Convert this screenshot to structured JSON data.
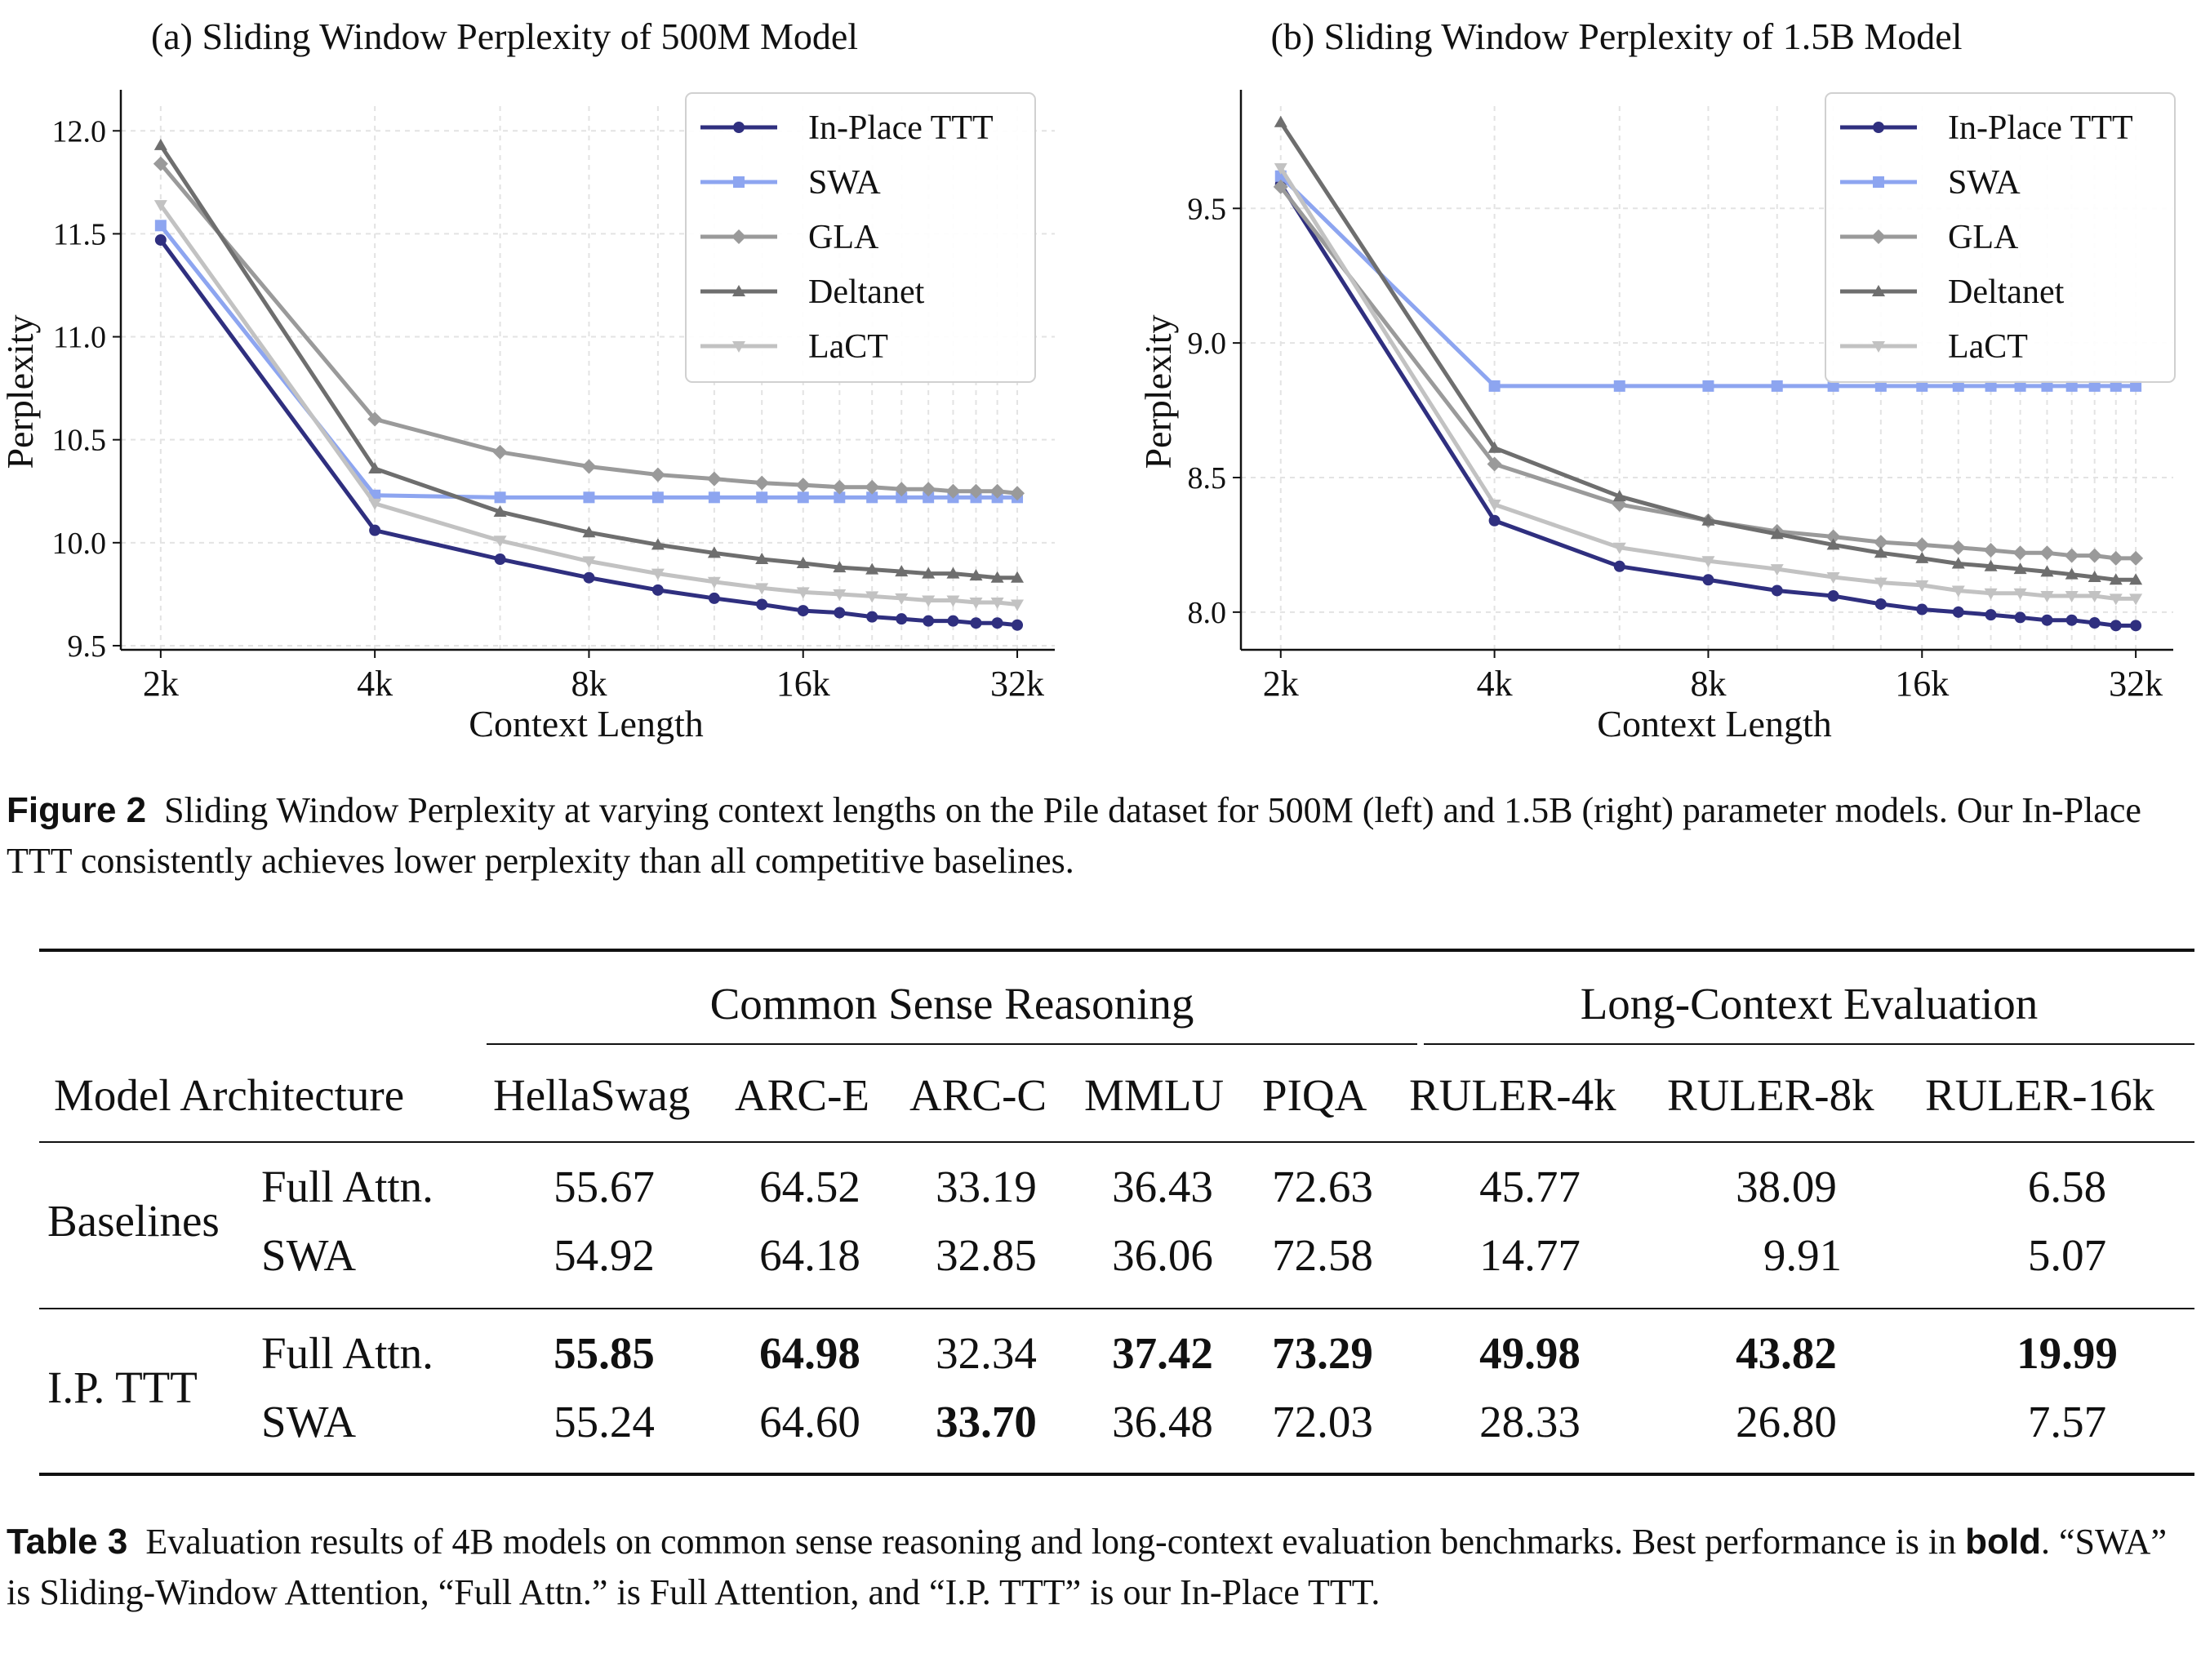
{
  "charts": [
    {
      "id": "a",
      "title": "(a) Sliding Window Perplexity of 500M Model",
      "xlabel": "Context Length",
      "ylabel": "Perplexity",
      "x_ticks": [
        "2k",
        "4k",
        "8k",
        "16k",
        "32k"
      ],
      "y_ticks": [
        "9.5",
        "10.0",
        "10.5",
        "11.0",
        "11.5",
        "12.0"
      ]
    },
    {
      "id": "b",
      "title": "(b) Sliding Window Perplexity of 1.5B Model",
      "xlabel": "Context Length",
      "ylabel": "Perplexity",
      "x_ticks": [
        "2k",
        "4k",
        "8k",
        "16k",
        "32k"
      ],
      "y_ticks": [
        "8.0",
        "8.5",
        "9.0",
        "9.5"
      ]
    }
  ],
  "legend": [
    "In-Place TTT",
    "SWA",
    "GLA",
    "Deltanet",
    "LaCT"
  ],
  "chart_data": [
    {
      "type": "line",
      "title": "(a) Sliding Window Perplexity of 500M Model",
      "xlabel": "Context Length",
      "ylabel": "Perplexity",
      "x": [
        2048,
        4096,
        6144,
        8192,
        10240,
        12288,
        14336,
        16384,
        18432,
        20480,
        22528,
        24576,
        26624,
        28672,
        30720,
        32768
      ],
      "xscale": "log2",
      "xlim": [
        1800,
        37000
      ],
      "ylim": [
        9.48,
        12.12
      ],
      "yticks": [
        9.5,
        10.0,
        10.5,
        11.0,
        11.5,
        12.0
      ],
      "xticks": [
        2048,
        4096,
        8192,
        16384,
        32768
      ],
      "legend_position": "top-right",
      "series": [
        {
          "name": "In-Place TTT",
          "color": "#2f2f7f",
          "marker": "circle",
          "values": [
            11.47,
            10.06,
            9.92,
            9.83,
            9.77,
            9.73,
            9.7,
            9.67,
            9.66,
            9.64,
            9.63,
            9.62,
            9.62,
            9.61,
            9.61,
            9.6
          ]
        },
        {
          "name": "SWA",
          "color": "#8da5f0",
          "marker": "square",
          "values": [
            11.54,
            10.23,
            10.22,
            10.22,
            10.22,
            10.22,
            10.22,
            10.22,
            10.22,
            10.22,
            10.22,
            10.22,
            10.22,
            10.22,
            10.22,
            10.22
          ]
        },
        {
          "name": "GLA",
          "color": "#9a9a9a",
          "marker": "diamond",
          "values": [
            11.84,
            10.6,
            10.44,
            10.37,
            10.33,
            10.31,
            10.29,
            10.28,
            10.27,
            10.27,
            10.26,
            10.26,
            10.25,
            10.25,
            10.25,
            10.24
          ]
        },
        {
          "name": "Deltanet",
          "color": "#6e6e6e",
          "marker": "triangle-up",
          "values": [
            11.93,
            10.36,
            10.15,
            10.05,
            9.99,
            9.95,
            9.92,
            9.9,
            9.88,
            9.87,
            9.86,
            9.85,
            9.85,
            9.84,
            9.83,
            9.83
          ]
        },
        {
          "name": "LaCT",
          "color": "#c2c2c2",
          "marker": "triangle-down",
          "values": [
            11.64,
            10.19,
            10.01,
            9.91,
            9.85,
            9.81,
            9.78,
            9.76,
            9.75,
            9.74,
            9.73,
            9.72,
            9.72,
            9.71,
            9.71,
            9.7
          ]
        }
      ]
    },
    {
      "type": "line",
      "title": "(b) Sliding Window Perplexity of 1.5B Model",
      "xlabel": "Context Length",
      "ylabel": "Perplexity",
      "x": [
        2048,
        4096,
        6144,
        8192,
        10240,
        12288,
        14336,
        16384,
        18432,
        20480,
        22528,
        24576,
        26624,
        28672,
        30720,
        32768
      ],
      "xscale": "log2",
      "xlim": [
        1800,
        37000
      ],
      "ylim": [
        7.86,
        9.88
      ],
      "yticks": [
        8.0,
        8.5,
        9.0,
        9.5
      ],
      "xticks": [
        2048,
        4096,
        8192,
        16384,
        32768
      ],
      "legend_position": "top-right",
      "series": [
        {
          "name": "In-Place TTT",
          "color": "#2f2f7f",
          "marker": "circle",
          "values": [
            9.59,
            8.34,
            8.17,
            8.12,
            8.08,
            8.06,
            8.03,
            8.01,
            8.0,
            7.99,
            7.98,
            7.97,
            7.97,
            7.96,
            7.95,
            7.95
          ]
        },
        {
          "name": "SWA",
          "color": "#8da5f0",
          "marker": "square",
          "values": [
            9.62,
            8.84,
            8.84,
            8.84,
            8.84,
            8.84,
            8.84,
            8.84,
            8.84,
            8.84,
            8.84,
            8.84,
            8.84,
            8.84,
            8.84,
            8.84
          ]
        },
        {
          "name": "GLA",
          "color": "#9a9a9a",
          "marker": "diamond",
          "values": [
            9.58,
            8.55,
            8.4,
            8.34,
            8.3,
            8.28,
            8.26,
            8.25,
            8.24,
            8.23,
            8.22,
            8.22,
            8.21,
            8.21,
            8.2,
            8.2
          ]
        },
        {
          "name": "Deltanet",
          "color": "#6e6e6e",
          "marker": "triangle-up",
          "values": [
            9.82,
            8.61,
            8.43,
            8.34,
            8.29,
            8.25,
            8.22,
            8.2,
            8.18,
            8.17,
            8.16,
            8.15,
            8.14,
            8.13,
            8.12,
            8.12
          ]
        },
        {
          "name": "LaCT",
          "color": "#c2c2c2",
          "marker": "triangle-down",
          "values": [
            9.65,
            8.4,
            8.24,
            8.19,
            8.16,
            8.13,
            8.11,
            8.1,
            8.08,
            8.07,
            8.07,
            8.06,
            8.06,
            8.06,
            8.05,
            8.05
          ]
        }
      ]
    }
  ],
  "figure_caption": {
    "label": "Figure 2",
    "text": "Sliding Window Perplexity at varying context lengths on the Pile dataset for 500M (left) and 1.5B (right) parameter models. Our In-Place TTT consistently achieves lower perplexity than all competitive baselines."
  },
  "table": {
    "group_headers": [
      "Common Sense Reasoning",
      "Long-Context Evaluation"
    ],
    "col_header_first": "Model Architecture",
    "columns": [
      "HellaSwag",
      "ARC-E",
      "ARC-C",
      "MMLU",
      "PIQA",
      "RULER-4k",
      "RULER-8k",
      "RULER-16k"
    ],
    "groups": [
      {
        "name": "Baselines",
        "rows": [
          {
            "variant": "Full Attn.",
            "values": [
              "55.67",
              "64.52",
              "33.19",
              "36.43",
              "72.63",
              "45.77",
              "38.09",
              "6.58"
            ]
          },
          {
            "variant": "SWA",
            "values": [
              "54.92",
              "64.18",
              "32.85",
              "36.06",
              "72.58",
              "14.77",
              "9.91",
              "5.07"
            ]
          }
        ]
      },
      {
        "name": "I.P. TTT",
        "rows": [
          {
            "variant": "Full Attn.",
            "values": [
              "55.85",
              "64.98",
              "32.34",
              "37.42",
              "73.29",
              "49.98",
              "43.82",
              "19.99"
            ]
          },
          {
            "variant": "SWA",
            "values": [
              "55.24",
              "64.60",
              "33.70",
              "36.48",
              "72.03",
              "28.33",
              "26.80",
              "7.57"
            ]
          }
        ]
      }
    ]
  },
  "table_caption": {
    "label": "Table 3",
    "text_before": "Evaluation results of 4B models on common sense reasoning and long-context evaluation benchmarks. Best performance is in",
    "bold_word": "bold",
    "text_after": ". “SWA” is Sliding-Window Attention, “Full Attn.” is Full Attention, and “I.P. TTT” is our In-Place TTT."
  }
}
